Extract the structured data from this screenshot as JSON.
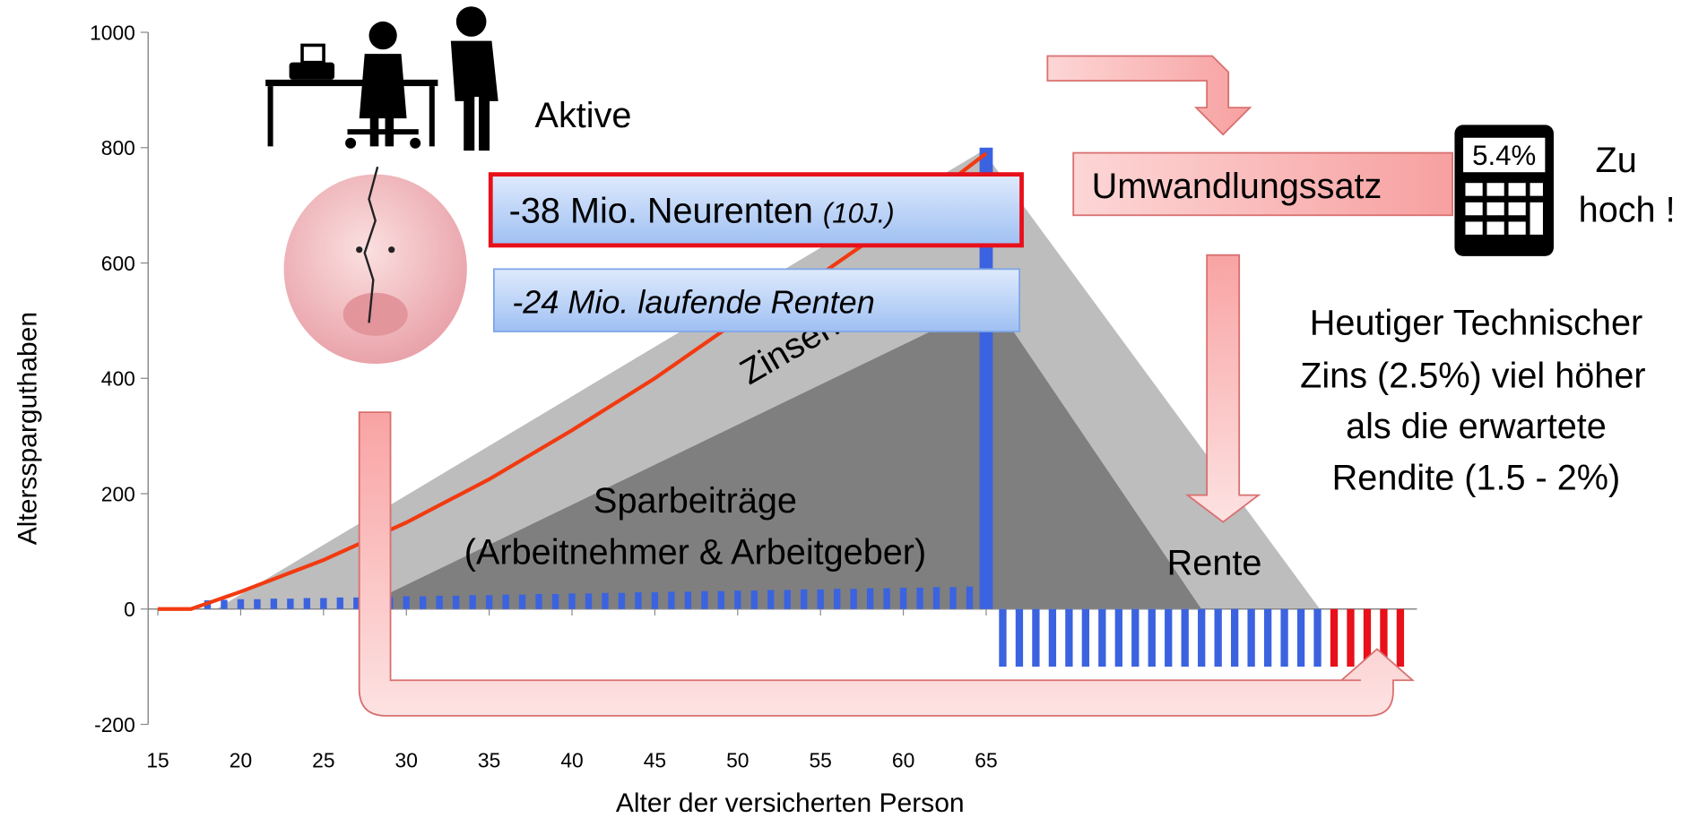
{
  "chart_data": {
    "type": "bar_line",
    "ylabel": "Alterssparguthaben",
    "xlabel": "Alter der versicherten Person",
    "xlim": [
      15,
      91
    ],
    "ylim": [
      -200,
      1000
    ],
    "xticks": [
      15,
      20,
      25,
      30,
      35,
      40,
      45,
      50,
      55,
      60,
      65
    ],
    "yticks": [
      -200,
      0,
      200,
      400,
      600,
      800,
      1000
    ],
    "line": {
      "color": "#f23a10",
      "x": [
        15,
        16,
        17,
        18,
        20,
        25,
        30,
        35,
        40,
        45,
        50,
        55,
        60,
        65
      ],
      "values": [
        0,
        0,
        0,
        10,
        30,
        85,
        150,
        225,
        310,
        400,
        500,
        580,
        680,
        790
      ]
    },
    "bar_groups": [
      {
        "color": "#3b63e0",
        "width": 0.4,
        "x": [
          18,
          19,
          20,
          21,
          22,
          23,
          24,
          25,
          26,
          27,
          28,
          29,
          30,
          31,
          32,
          33,
          34,
          35,
          36,
          37,
          38,
          39,
          40,
          41,
          42,
          43,
          44,
          45,
          46,
          47,
          48,
          49,
          50,
          51,
          52,
          53,
          54,
          55,
          56,
          57,
          58,
          59,
          60,
          61,
          62,
          63,
          64
        ],
        "values": [
          15,
          16,
          17,
          17,
          18,
          18,
          19,
          19,
          20,
          20,
          21,
          21,
          22,
          22,
          23,
          23,
          24,
          24,
          25,
          25,
          26,
          26,
          27,
          27,
          28,
          28,
          29,
          29,
          30,
          30,
          31,
          31,
          32,
          32,
          33,
          33,
          34,
          34,
          35,
          35,
          36,
          36,
          37,
          37,
          38,
          38,
          39
        ]
      },
      {
        "color": "#3b63e0",
        "width": 0.8,
        "x": [
          65
        ],
        "values": [
          800
        ]
      },
      {
        "color": "#3b63e0",
        "width": 0.45,
        "x": [
          66,
          67,
          68,
          69,
          70,
          71,
          72,
          73,
          74,
          75,
          76,
          77,
          78,
          79,
          80,
          81,
          82,
          83,
          84,
          85
        ],
        "values": [
          -100,
          -100,
          -100,
          -100,
          -100,
          -100,
          -100,
          -100,
          -100,
          -100,
          -100,
          -100,
          -100,
          -100,
          -100,
          -100,
          -100,
          -100,
          -100,
          -100
        ]
      },
      {
        "color": "#e8101a",
        "width": 0.45,
        "x": [
          86,
          87,
          88,
          89,
          90
        ],
        "values": [
          -100,
          -100,
          -100,
          -100,
          -100
        ]
      }
    ],
    "annotations": {
      "aktive": "Aktive",
      "neurenten": "-38 Mio. Neurenten",
      "neurenten_note": "(10J.)",
      "laufende": "-24 Mio. laufende Renten",
      "zinsen": "Zinsen",
      "spar1": "Sparbeiträge",
      "spar2": "(Arbeitnehmer & Arbeitgeber)",
      "rente": "Rente",
      "umwandlung": "Umwandlungssatz",
      "calc": "5.4%",
      "zu": "Zu",
      "hoch": "hoch !",
      "tz1": "Heutiger Technischer",
      "tz2": "Zins (2.5%) viel höher",
      "tz3": "als die erwartete",
      "tz4": "Rendite (1.5 - 2%)"
    }
  }
}
